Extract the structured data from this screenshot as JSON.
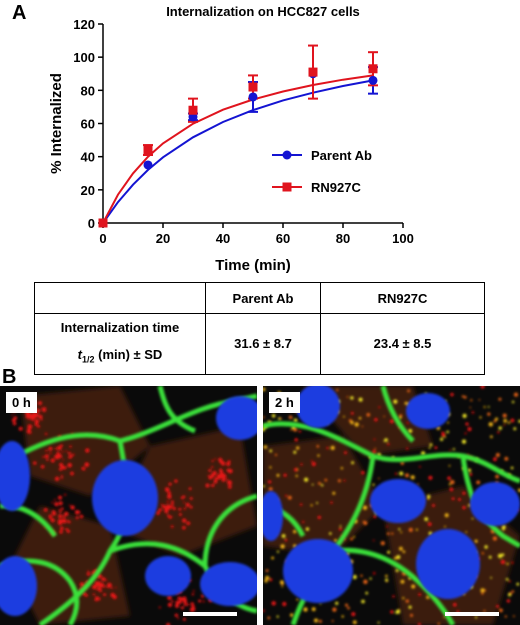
{
  "panels": {
    "a": "A",
    "b": "B"
  },
  "chart_data": {
    "type": "line",
    "title": "Internalization on HCC827 cells",
    "xlabel": "Time (min)",
    "ylabel": "% Internalized",
    "xlim": [
      0,
      100
    ],
    "ylim": [
      0,
      120
    ],
    "xticks": [
      0,
      20,
      40,
      60,
      80,
      100
    ],
    "yticks": [
      0,
      20,
      40,
      60,
      80,
      100,
      120
    ],
    "legend_position": "right-middle",
    "series": [
      {
        "name": "Parent Ab",
        "color": "#1414d2",
        "marker": "circle",
        "x": [
          0,
          15,
          30,
          50,
          70,
          90
        ],
        "y": [
          0,
          35,
          64,
          76,
          90,
          86
        ],
        "err": [
          0,
          0,
          2,
          9,
          0,
          8
        ],
        "fit": [
          {
            "x": 0,
            "y": 0
          },
          {
            "x": 5,
            "y": 12.6
          },
          {
            "x": 10,
            "y": 23.1
          },
          {
            "x": 15,
            "y": 32
          },
          {
            "x": 20,
            "y": 39.6
          },
          {
            "x": 30,
            "y": 51.7
          },
          {
            "x": 40,
            "y": 60.9
          },
          {
            "x": 50,
            "y": 68.1
          },
          {
            "x": 60,
            "y": 73.9
          },
          {
            "x": 70,
            "y": 78.6
          },
          {
            "x": 80,
            "y": 82.6
          },
          {
            "x": 90,
            "y": 86
          }
        ]
      },
      {
        "name": "RN927C",
        "color": "#e0141e",
        "marker": "square",
        "x": [
          0,
          15,
          30,
          50,
          70,
          90
        ],
        "y": [
          0,
          44,
          68,
          82,
          91,
          93
        ],
        "err": [
          0,
          3,
          7,
          7,
          16,
          10
        ],
        "fit": [
          {
            "x": 0,
            "y": 0
          },
          {
            "x": 5,
            "y": 17.1
          },
          {
            "x": 10,
            "y": 29.9
          },
          {
            "x": 15,
            "y": 40
          },
          {
            "x": 20,
            "y": 48
          },
          {
            "x": 30,
            "y": 59.9
          },
          {
            "x": 40,
            "y": 68.3
          },
          {
            "x": 50,
            "y": 74.5
          },
          {
            "x": 60,
            "y": 79.3
          },
          {
            "x": 70,
            "y": 83.2
          },
          {
            "x": 80,
            "y": 86.4
          },
          {
            "x": 90,
            "y": 89
          }
        ]
      }
    ]
  },
  "table": {
    "headers": [
      "",
      "Parent Ab",
      "RN927C"
    ],
    "row_label_1": "Internalization time",
    "row_label_2": "t1/2 (min) ± SD",
    "row_label_2_t": "t",
    "row_label_2_sub": "1/2",
    "row_label_2_rest": " (min) ± SD",
    "values": [
      "31.6 ± 8.7",
      "23.4 ± 8.5"
    ]
  },
  "images": [
    {
      "time_label": "0 h"
    },
    {
      "time_label": "2 h"
    }
  ]
}
